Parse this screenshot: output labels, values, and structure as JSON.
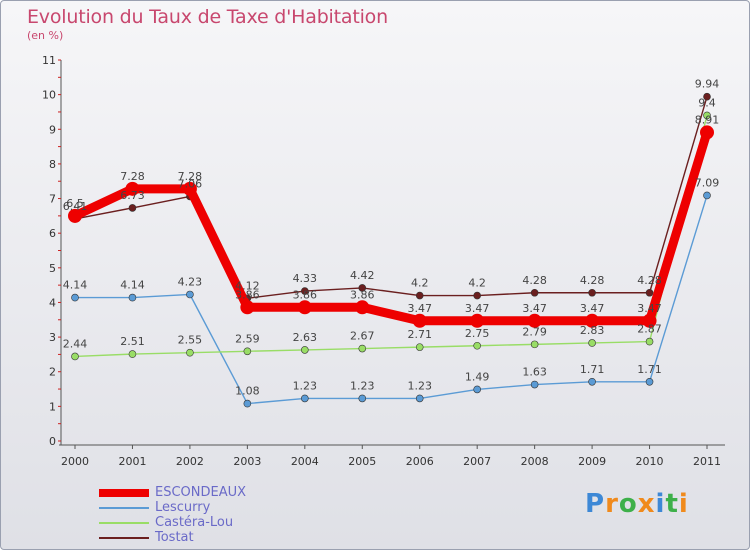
{
  "title": "Evolution du Taux de Taxe d'Habitation",
  "subtitle": "(en %)",
  "logo_text": "Proxiti",
  "chart_data": {
    "type": "line",
    "x": [
      "2000",
      "2001",
      "2002",
      "2003",
      "2004",
      "2005",
      "2006",
      "2007",
      "2008",
      "2009",
      "2010",
      "2011"
    ],
    "ylim": [
      0,
      11
    ],
    "yticks": [
      "0",
      "1",
      "2",
      "3",
      "4",
      "5",
      "6",
      "7",
      "8",
      "9",
      "10",
      "11"
    ],
    "grid": false,
    "legend_position": "bottom-left",
    "series": [
      {
        "name": "ESCONDEAUX",
        "color": "#ee0000",
        "values": [
          6.5,
          7.28,
          7.28,
          3.86,
          3.86,
          3.86,
          3.47,
          3.47,
          3.47,
          3.47,
          3.47,
          8.91
        ]
      },
      {
        "name": "Lescurry",
        "color": "#5b9bd5",
        "values": [
          4.14,
          4.14,
          4.23,
          1.08,
          1.23,
          1.23,
          1.23,
          1.49,
          1.63,
          1.71,
          1.71,
          7.09
        ]
      },
      {
        "name": "Castéra-Lou",
        "color": "#99dd66",
        "values": [
          2.44,
          2.51,
          2.55,
          2.59,
          2.63,
          2.67,
          2.71,
          2.75,
          2.79,
          2.83,
          2.87,
          9.4
        ]
      },
      {
        "name": "Tostat",
        "color": "#6b1f1f",
        "values": [
          6.41,
          6.73,
          7.06,
          4.12,
          4.33,
          4.42,
          4.2,
          4.2,
          4.28,
          4.28,
          4.28,
          9.94
        ]
      }
    ]
  }
}
